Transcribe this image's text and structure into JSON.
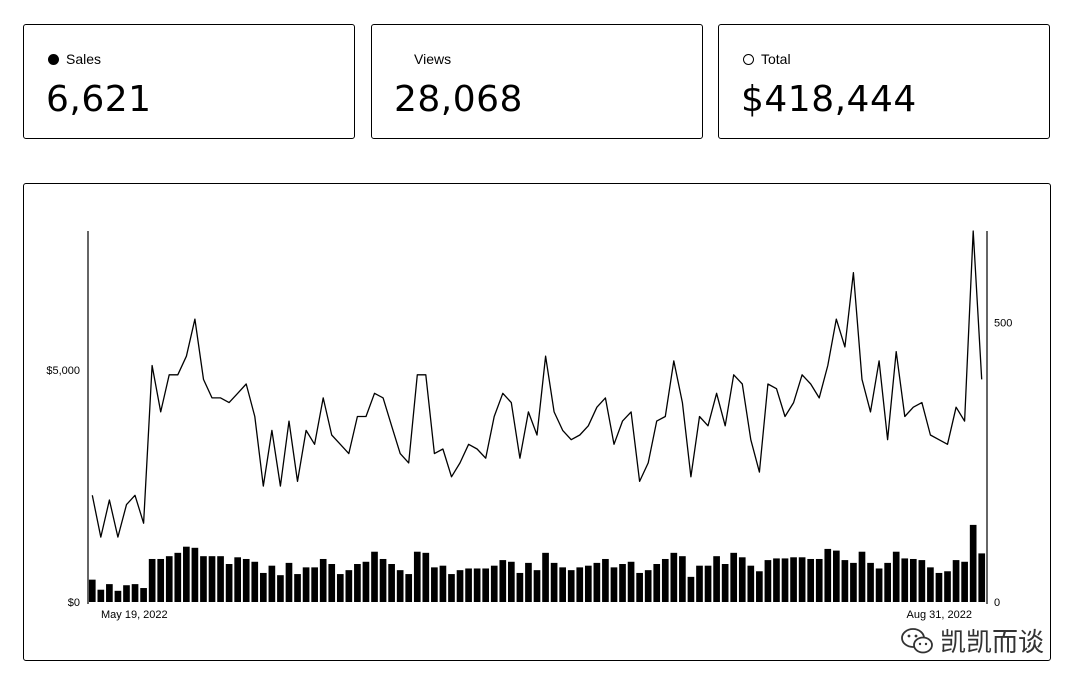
{
  "cards": [
    {
      "label": "Sales",
      "value": "6,621",
      "marker": "filled"
    },
    {
      "label": "Views",
      "value": "28,068",
      "marker": "none"
    },
    {
      "label": "Total",
      "value": "$418,444",
      "marker": "hollow"
    }
  ],
  "watermark": {
    "text": "凯凯而谈",
    "icon": "wechat-icon"
  },
  "chart_data": {
    "type": "bar",
    "title": "",
    "x_start_label": "May 19, 2022",
    "x_end_label": "Aug 31, 2022",
    "left_axis": {
      "ticks": [
        "$0",
        "$5,000"
      ],
      "tick_values": [
        0,
        5000
      ],
      "ylim": [
        0,
        8000
      ]
    },
    "right_axis": {
      "ticks": [
        "0",
        "500"
      ],
      "tick_values": [
        0,
        500
      ],
      "ylim": [
        0,
        664
      ]
    },
    "line_series": {
      "axis": "left",
      "values": [
        2300,
        1400,
        2200,
        1400,
        2100,
        2300,
        1700,
        5100,
        4100,
        4900,
        4900,
        5300,
        6100,
        4800,
        4400,
        4400,
        4300,
        4500,
        4700,
        4000,
        2500,
        3700,
        2500,
        3900,
        2600,
        3700,
        3400,
        4400,
        3600,
        3400,
        3200,
        4000,
        4000,
        4500,
        4400,
        3800,
        3200,
        3000,
        4900,
        4900,
        3200,
        3300,
        2700,
        3000,
        3400,
        3300,
        3100,
        4000,
        4500,
        4300,
        3100,
        4100,
        3600,
        5300,
        4100,
        3700,
        3500,
        3600,
        3800,
        4200,
        4400,
        3400,
        3900,
        4100,
        2600,
        3000,
        3900,
        4000,
        5200,
        4300,
        2700,
        4000,
        3800,
        4500,
        3800,
        4900,
        4700,
        3500,
        2800,
        4700,
        4600,
        4000,
        4300,
        4900,
        4700,
        4400,
        5100,
        6100,
        5500,
        7100,
        4800,
        4100,
        5200,
        3500,
        5400,
        4000,
        4200,
        4300,
        3600,
        3500,
        3400,
        4200,
        3900,
        8000,
        4800
      ]
    },
    "bar_series": {
      "axis": "right",
      "values": [
        40,
        22,
        32,
        20,
        30,
        32,
        25,
        77,
        77,
        82,
        88,
        99,
        97,
        82,
        82,
        82,
        68,
        80,
        77,
        72,
        52,
        65,
        48,
        70,
        50,
        62,
        62,
        77,
        68,
        50,
        57,
        68,
        72,
        90,
        77,
        68,
        57,
        50,
        90,
        88,
        62,
        65,
        50,
        57,
        60,
        60,
        60,
        65,
        75,
        72,
        52,
        70,
        57,
        88,
        70,
        62,
        57,
        62,
        65,
        70,
        77,
        62,
        68,
        72,
        52,
        57,
        68,
        77,
        88,
        82,
        45,
        65,
        65,
        82,
        68,
        88,
        80,
        65,
        55,
        75,
        78,
        78,
        80,
        80,
        77,
        77,
        95,
        92,
        75,
        70,
        90,
        70,
        60,
        70,
        90,
        78,
        77,
        75,
        62,
        52,
        55,
        75,
        72,
        138,
        87
      ]
    }
  }
}
